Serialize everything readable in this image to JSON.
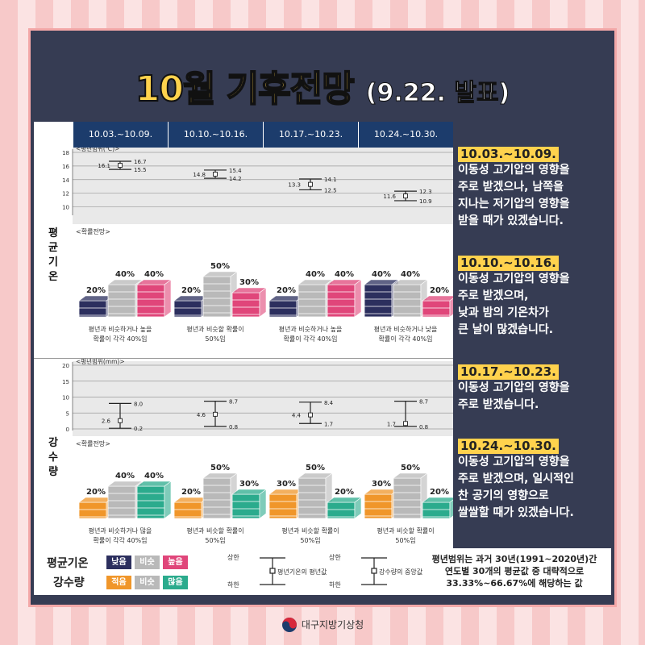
{
  "title": {
    "main": "10월 기후전망",
    "sub": "(9.22. 발표)"
  },
  "periods": [
    "10.03.~10.09.",
    "10.10.~10.16.",
    "10.17.~10.23.",
    "10.24.~10.30."
  ],
  "sections": {
    "temp": {
      "label_chars": [
        "평",
        "균",
        "기",
        "온"
      ],
      "range_label": "<평년범위(℃)>",
      "prob_label": "<확률전망>"
    },
    "precip": {
      "label_chars": [
        "강",
        "수",
        "량"
      ],
      "range_label": "<평년범위(mm)>",
      "prob_label": "<확률전망>"
    }
  },
  "temp_probs": [
    {
      "low": "20%",
      "mid": "40%",
      "high": "40%",
      "caption": [
        "평년과 비슷하거나 높을",
        "확률이 각각 40%임"
      ]
    },
    {
      "low": "20%",
      "mid": "50%",
      "high": "30%",
      "caption": [
        "평년과 비슷할 확률이",
        "50%임"
      ]
    },
    {
      "low": "20%",
      "mid": "40%",
      "high": "40%",
      "caption": [
        "평년과 비슷하거나 높을",
        "확률이 각각 40%임"
      ]
    },
    {
      "low": "40%",
      "mid": "40%",
      "high": "20%",
      "caption": [
        "평년과 비슷하거나 낮을",
        "확률이 각각 40%임"
      ]
    }
  ],
  "precip_probs": [
    {
      "low": "20%",
      "mid": "40%",
      "high": "40%",
      "caption": [
        "평년과 비슷하거나 많을",
        "확률이 각각 40%임"
      ]
    },
    {
      "low": "20%",
      "mid": "50%",
      "high": "30%",
      "caption": [
        "평년과 비슷할 확률이",
        "50%임"
      ]
    },
    {
      "low": "30%",
      "mid": "50%",
      "high": "20%",
      "caption": [
        "평년과 비슷할 확률이",
        "50%임"
      ]
    },
    {
      "low": "30%",
      "mid": "50%",
      "high": "20%",
      "caption": [
        "평년과 비슷할 확률이",
        "50%임"
      ]
    }
  ],
  "notes": [
    {
      "date": "10.03.~10.09.",
      "lines": [
        "이동성 고기압의 영향을",
        "주로 받겠으나, 남쪽을",
        "지나는 저기압의 영향을",
        "받을 때가 있겠습니다."
      ]
    },
    {
      "date": "10.10.~10.16.",
      "lines": [
        "이동성 고기압의 영향을",
        "주로 받겠으며,",
        "낮과 밤의 기온차가",
        "큰 날이 많겠습니다."
      ]
    },
    {
      "date": "10.17.~10.23.",
      "lines": [
        "이동성 고기압의 영향을",
        "주로 받겠습니다."
      ]
    },
    {
      "date": "10.24.~10.30.",
      "lines": [
        "이동성 고기압의 영향을",
        "주로 받겠으며, 일시적인",
        "찬 공기의 영향으로",
        "쌀쌀할 때가 있겠습니다."
      ]
    }
  ],
  "legend": {
    "temp_label": "평균기온",
    "precip_label": "강수량",
    "temp_chips": [
      "낮음",
      "비슷",
      "높음"
    ],
    "precip_chips": [
      "적음",
      "비슷",
      "많음"
    ],
    "upper": "상한",
    "lower": "하한",
    "temp_mean": "평년기온의 평년값",
    "precip_median": "강수량의 중앙값",
    "note": [
      "평년범위는 과거 30년(1991~2020년)간",
      "연도별 30개의 평균값 중 대략적으로",
      "33.33%~66.67%에 해당하는 값"
    ]
  },
  "footer": {
    "org": "대구지방기상청"
  },
  "colors": {
    "temp_low": "#2c2f5e",
    "temp_mid": "#b9b9b9",
    "temp_high": "#e0467a",
    "precip_low": "#f0962a",
    "precip_mid": "#b9b9b9",
    "precip_high": "#2bab8d",
    "header": "#1c3c6c",
    "date_bg": "#ffd24d"
  },
  "chart_data": [
    {
      "type": "range",
      "title": "<평년범위(℃)>",
      "categories": [
        "10.03.~10.09.",
        "10.10.~10.16.",
        "10.17.~10.23.",
        "10.24.~10.30."
      ],
      "ylim": [
        9,
        18
      ],
      "yticks": [
        10,
        12,
        14,
        16,
        18
      ],
      "series": [
        {
          "name": "상한",
          "values": [
            16.7,
            15.4,
            14.1,
            12.3
          ]
        },
        {
          "name": "평년값",
          "values": [
            16.1,
            14.8,
            13.3,
            11.6
          ]
        },
        {
          "name": "하한",
          "values": [
            15.5,
            14.2,
            12.5,
            10.9
          ]
        }
      ]
    },
    {
      "type": "range",
      "title": "<평년범위(mm)>",
      "categories": [
        "10.03.~10.09.",
        "10.10.~10.16.",
        "10.17.~10.23.",
        "10.24.~10.30."
      ],
      "ylim": [
        0,
        20
      ],
      "yticks": [
        0,
        5,
        10,
        15,
        20
      ],
      "series": [
        {
          "name": "상한",
          "values": [
            8.0,
            8.7,
            8.4,
            8.7
          ]
        },
        {
          "name": "중앙값",
          "values": [
            2.6,
            4.6,
            4.4,
            1.7
          ]
        },
        {
          "name": "하한",
          "values": [
            0.2,
            0.8,
            1.7,
            0.8
          ]
        }
      ]
    }
  ]
}
